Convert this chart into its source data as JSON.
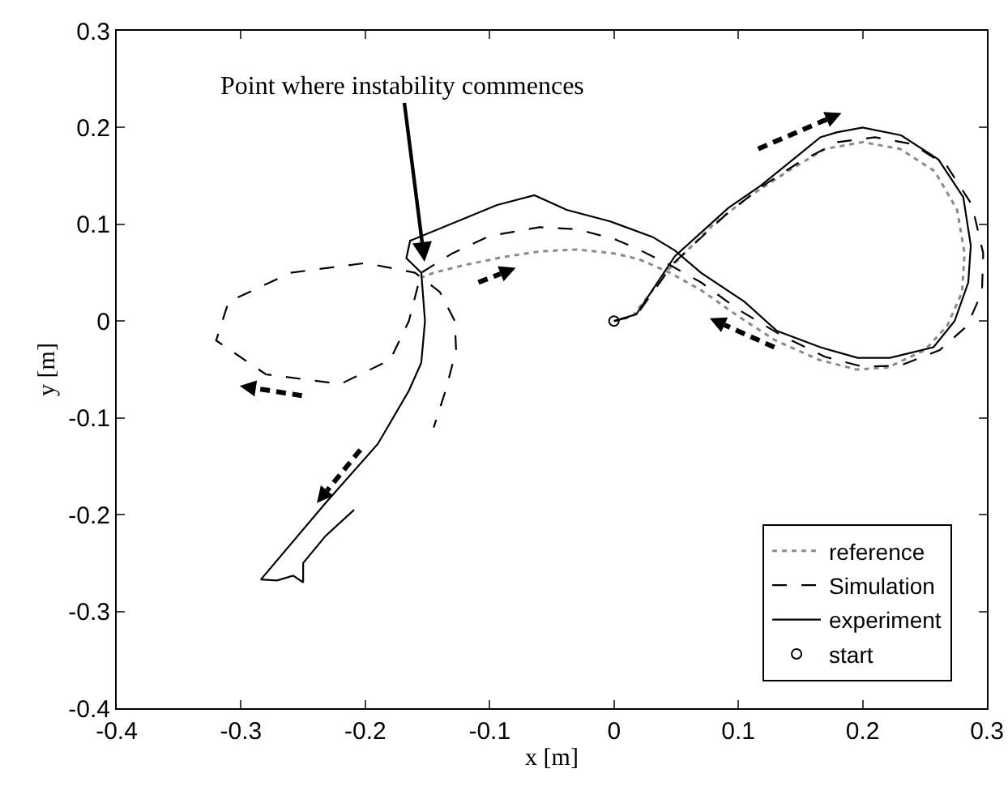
{
  "chart_data": {
    "type": "line",
    "xlabel": "x [m]",
    "ylabel": "y [m]",
    "xlim": [
      -0.4,
      0.3
    ],
    "ylim": [
      -0.4,
      0.3
    ],
    "xticks": [
      -0.4,
      -0.3,
      -0.2,
      -0.1,
      0,
      0.1,
      0.2,
      0.3
    ],
    "yticks": [
      -0.4,
      -0.3,
      -0.2,
      -0.1,
      0,
      0.1,
      0.2,
      0.3
    ],
    "grid": false,
    "legend": "bottom right",
    "annotations": [
      {
        "text": "Point where instability commences",
        "x": -0.152,
        "y": 0.058
      }
    ],
    "series": [
      {
        "name": "reference",
        "type": "line",
        "line_style": "dotted",
        "color": "#8a8a8a",
        "x": [
          0,
          0.015,
          0.045,
          0.08,
          0.11,
          0.14,
          0.17,
          0.2,
          0.23,
          0.258,
          0.276,
          0.282,
          0.28,
          0.268,
          0.25,
          0.22,
          0.195,
          0.165,
          0.13,
          0.1,
          0.07,
          0.045,
          0.02,
          0,
          -0.03,
          -0.06,
          -0.09,
          -0.12,
          -0.145,
          -0.155
        ],
        "values": [
          0,
          0.005,
          0.055,
          0.1,
          0.13,
          0.155,
          0.178,
          0.185,
          0.178,
          0.155,
          0.115,
          0.07,
          0.03,
          -0.005,
          -0.03,
          -0.048,
          -0.05,
          -0.04,
          -0.02,
          0.005,
          0.032,
          0.05,
          0.064,
          0.07,
          0.074,
          0.072,
          0.066,
          0.058,
          0.05,
          0.045
        ]
      },
      {
        "name": "Simulation",
        "type": "line",
        "line_style": "dashed",
        "color": "#000000",
        "x": [
          0,
          0.018,
          0.048,
          0.09,
          0.12,
          0.15,
          0.18,
          0.21,
          0.24,
          0.268,
          0.288,
          0.297,
          0.296,
          0.284,
          0.262,
          0.23,
          0.2,
          0.17,
          0.135,
          0.1,
          0.07,
          0.045,
          0.02,
          0,
          -0.03,
          -0.06,
          -0.1,
          -0.13,
          -0.155,
          -0.165,
          -0.18,
          -0.22,
          -0.28,
          -0.32,
          -0.31,
          -0.26,
          -0.2,
          -0.16,
          -0.14,
          -0.128,
          -0.127,
          -0.135,
          -0.145
        ],
        "values": [
          0,
          0.006,
          0.06,
          0.11,
          0.14,
          0.165,
          0.185,
          0.19,
          0.183,
          0.16,
          0.12,
          0.07,
          0.03,
          -0.005,
          -0.03,
          -0.046,
          -0.047,
          -0.037,
          -0.015,
          0.012,
          0.04,
          0.058,
          0.074,
          0.085,
          0.095,
          0.097,
          0.088,
          0.07,
          0.05,
          0,
          -0.04,
          -0.065,
          -0.055,
          -0.02,
          0.02,
          0.05,
          0.06,
          0.05,
          0.03,
          0,
          -0.03,
          -0.07,
          -0.11
        ]
      },
      {
        "name": "experiment",
        "type": "line",
        "line_style": "solid",
        "color": "#000000",
        "x": [
          0,
          0.018,
          0.049,
          0.092,
          0.118,
          0.144,
          0.166,
          0.179,
          0.2,
          0.231,
          0.261,
          0.281,
          0.287,
          0.285,
          0.274,
          0.257,
          0.222,
          0.196,
          0.166,
          0.131,
          0.105,
          0.07,
          0.049,
          0.031,
          -0.003,
          -0.038,
          -0.064,
          -0.094,
          -0.164,
          -0.167,
          -0.155,
          -0.152,
          -0.155,
          -0.165,
          -0.19,
          -0.232,
          -0.284,
          -0.271,
          -0.258,
          -0.25,
          -0.25,
          -0.232,
          -0.209
        ],
        "values": [
          0,
          0.007,
          0.067,
          0.117,
          0.14,
          0.167,
          0.19,
          0.195,
          0.2,
          0.192,
          0.167,
          0.128,
          0.078,
          0.04,
          0,
          -0.027,
          -0.038,
          -0.038,
          -0.027,
          -0.01,
          0.02,
          0.05,
          0.073,
          0.087,
          0.103,
          0.115,
          0.13,
          0.12,
          0.083,
          0.065,
          0.05,
          0,
          -0.043,
          -0.072,
          -0.127,
          -0.188,
          -0.267,
          -0.268,
          -0.263,
          -0.27,
          -0.25,
          -0.222,
          -0.195
        ]
      },
      {
        "name": "start",
        "type": "scatter",
        "marker": "circle",
        "color": "#000000",
        "x": [
          0
        ],
        "values": [
          0
        ]
      }
    ]
  }
}
